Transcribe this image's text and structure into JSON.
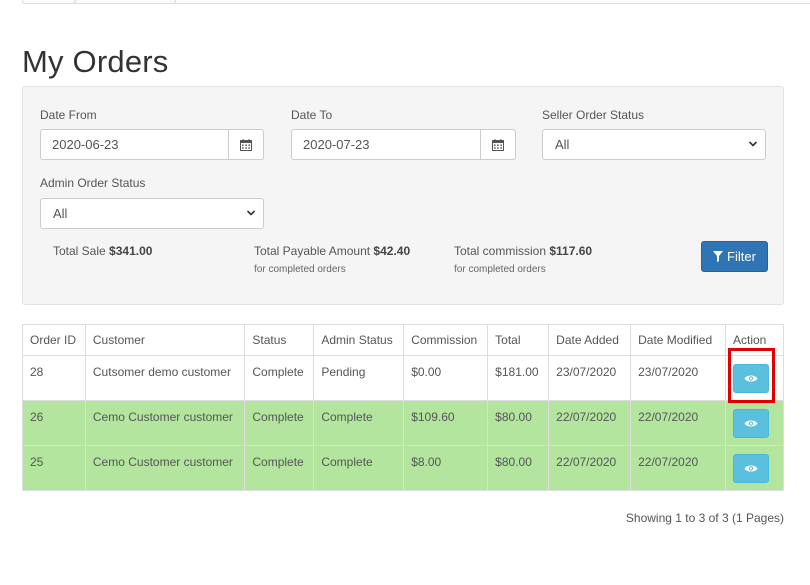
{
  "page": {
    "title": "My Orders"
  },
  "filters": {
    "date_from_label": "Date From",
    "date_from_value": "2020-06-23",
    "date_to_label": "Date To",
    "date_to_value": "2020-07-23",
    "seller_status_label": "Seller Order Status",
    "seller_status_value": "All",
    "admin_status_label": "Admin Order Status",
    "admin_status_value": "All",
    "filter_button": "Filter"
  },
  "totals": {
    "sale_label": "Total Sale",
    "sale_value": "$341.00",
    "payable_label": "Total Payable Amount",
    "payable_value": "$42.40",
    "payable_note": "for completed orders",
    "commission_label": "Total commission",
    "commission_value": "$117.60",
    "commission_note": "for completed orders"
  },
  "table": {
    "headers": [
      "Order ID",
      "Customer",
      "Status",
      "Admin Status",
      "Commission",
      "Total",
      "Date Added",
      "Date Modified",
      "Action"
    ],
    "rows": [
      [
        "28",
        "Cutsomer demo customer",
        "Complete",
        "Pending",
        "$0.00",
        "$181.00",
        "23/07/2020",
        "23/07/2020"
      ],
      [
        "26",
        "Cemo Customer customer",
        "Complete",
        "Complete",
        "$109.60",
        "$80.00",
        "22/07/2020",
        "22/07/2020"
      ],
      [
        "25",
        "Cemo Customer customer",
        "Complete",
        "Complete",
        "$8.00",
        "$80.00",
        "22/07/2020",
        "22/07/2020"
      ]
    ]
  },
  "colors": {
    "completed_row": "#b3e59f",
    "filter_button": "#2f75b5",
    "view_button": "#5bc0de",
    "highlight": "#e00000"
  },
  "pagination": {
    "text": "Showing 1 to 3 of 3 (1 Pages)"
  }
}
